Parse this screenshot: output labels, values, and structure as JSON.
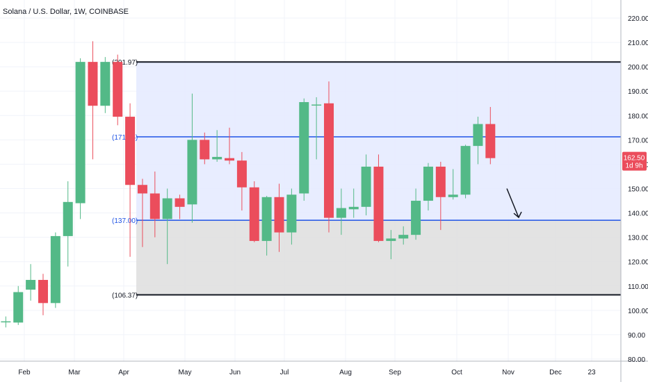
{
  "chart_data": {
    "type": "candlestick",
    "title": "Solana / U.S. Dollar, 1W, COINBASE",
    "ylim": [
      80,
      222
    ],
    "y_ticks": [
      80,
      90,
      100,
      110,
      120,
      130,
      140,
      150,
      160,
      170,
      180,
      190,
      200,
      210,
      220
    ],
    "y_tick_labels": [
      "80.00",
      "90.00",
      "100.00",
      "110.00",
      "120.00",
      "130.00",
      "140.00",
      "150.00",
      "160.00",
      "170.00",
      "180.00",
      "190.00",
      "200.00",
      "210.00",
      "220.00"
    ],
    "x_tick_labels": [
      "Feb",
      "Mar",
      "Apr",
      "May",
      "Jun",
      "Jul",
      "Aug",
      "Sep",
      "Oct",
      "Nov",
      "Dec",
      "23"
    ],
    "grid": true,
    "colors": {
      "up": "#53b987",
      "down": "#eb4d5c",
      "resistance_line": "#131722",
      "level_line": "#1e53e5",
      "upper_zone": "#e6ebff",
      "lower_zone": "#e0e0e0",
      "price_tag": "#eb4d5c"
    },
    "candles": [
      {
        "o": 91.0,
        "h": 96.0,
        "l": 90.0,
        "c": 96.0
      },
      {
        "o": 95.5,
        "h": 97.5,
        "l": 93.0,
        "c": 95.5
      },
      {
        "o": 95.0,
        "h": 110.0,
        "l": 94.0,
        "c": 107.5
      },
      {
        "o": 108.5,
        "h": 119.0,
        "l": 104.0,
        "c": 112.5
      },
      {
        "o": 112.5,
        "h": 115.0,
        "l": 98.0,
        "c": 103.0
      },
      {
        "o": 103.0,
        "h": 132.0,
        "l": 101.0,
        "c": 130.5
      },
      {
        "o": 130.5,
        "h": 153.0,
        "l": 118.0,
        "c": 144.5
      },
      {
        "o": 144.0,
        "h": 203.5,
        "l": 137.5,
        "c": 202.0
      },
      {
        "o": 202.0,
        "h": 210.5,
        "l": 162.0,
        "c": 184.0
      },
      {
        "o": 184.0,
        "h": 204.0,
        "l": 181.0,
        "c": 202.0
      },
      {
        "o": 202.0,
        "h": 205.0,
        "l": 176.0,
        "c": 179.5
      },
      {
        "o": 179.5,
        "h": 185.0,
        "l": 122.0,
        "c": 151.5
      },
      {
        "o": 151.5,
        "h": 154.0,
        "l": 126.0,
        "c": 148.0
      },
      {
        "o": 148.0,
        "h": 157.0,
        "l": 130.0,
        "c": 137.5
      },
      {
        "o": 137.5,
        "h": 150.0,
        "l": 119.0,
        "c": 146.0
      },
      {
        "o": 146.0,
        "h": 147.5,
        "l": 137.5,
        "c": 142.5
      },
      {
        "o": 143.5,
        "h": 189.0,
        "l": 136.0,
        "c": 170.0
      },
      {
        "o": 170.0,
        "h": 173.0,
        "l": 160.0,
        "c": 162.0
      },
      {
        "o": 162.0,
        "h": 174.0,
        "l": 161.0,
        "c": 163.0
      },
      {
        "o": 162.5,
        "h": 175.0,
        "l": 160.0,
        "c": 161.5
      },
      {
        "o": 161.5,
        "h": 165.0,
        "l": 141.0,
        "c": 150.5
      },
      {
        "o": 150.5,
        "h": 153.0,
        "l": 128.0,
        "c": 128.5
      },
      {
        "o": 128.5,
        "h": 147.0,
        "l": 122.5,
        "c": 146.5
      },
      {
        "o": 146.5,
        "h": 152.0,
        "l": 124.0,
        "c": 132.0
      },
      {
        "o": 132.0,
        "h": 150.0,
        "l": 127.0,
        "c": 147.5
      },
      {
        "o": 148.0,
        "h": 187.0,
        "l": 145.0,
        "c": 185.5
      },
      {
        "o": 184.5,
        "h": 187.5,
        "l": 162.0,
        "c": 184.5
      },
      {
        "o": 185.0,
        "h": 194.0,
        "l": 132.0,
        "c": 138.0
      },
      {
        "o": 138.0,
        "h": 150.0,
        "l": 131.0,
        "c": 142.0
      },
      {
        "o": 141.5,
        "h": 150.0,
        "l": 138.0,
        "c": 142.5
      },
      {
        "o": 142.5,
        "h": 164.0,
        "l": 139.0,
        "c": 159.0
      },
      {
        "o": 159.0,
        "h": 164.0,
        "l": 128.0,
        "c": 128.5
      },
      {
        "o": 128.5,
        "h": 133.0,
        "l": 121.0,
        "c": 129.5
      },
      {
        "o": 129.5,
        "h": 134.5,
        "l": 127.0,
        "c": 131.0
      },
      {
        "o": 131.0,
        "h": 150.0,
        "l": 129.0,
        "c": 145.0
      },
      {
        "o": 145.0,
        "h": 160.5,
        "l": 141.0,
        "c": 159.0
      },
      {
        "o": 159.0,
        "h": 161.0,
        "l": 133.0,
        "c": 146.5
      },
      {
        "o": 146.5,
        "h": 158.0,
        "l": 145.5,
        "c": 147.5
      },
      {
        "o": 147.5,
        "h": 168.0,
        "l": 146.0,
        "c": 167.5
      },
      {
        "o": 167.5,
        "h": 179.5,
        "l": 160.0,
        "c": 176.5
      },
      {
        "o": 176.5,
        "h": 183.5,
        "l": 160.0,
        "c": 162.5
      }
    ],
    "levels": [
      {
        "value": 201.97,
        "label": "(201.97)",
        "style": "resistance"
      },
      {
        "value": 171.25,
        "label": "(171.25)",
        "style": "level"
      },
      {
        "value": 137.0,
        "label": "(137.00)",
        "style": "level"
      },
      {
        "value": 106.37,
        "label": "(106.37)",
        "style": "resistance"
      }
    ],
    "current_price": {
      "value": 162.5,
      "label": "162.50",
      "countdown": "1d 9h"
    },
    "projection_arrow": {
      "from": 150.0,
      "to": 137.0
    }
  }
}
